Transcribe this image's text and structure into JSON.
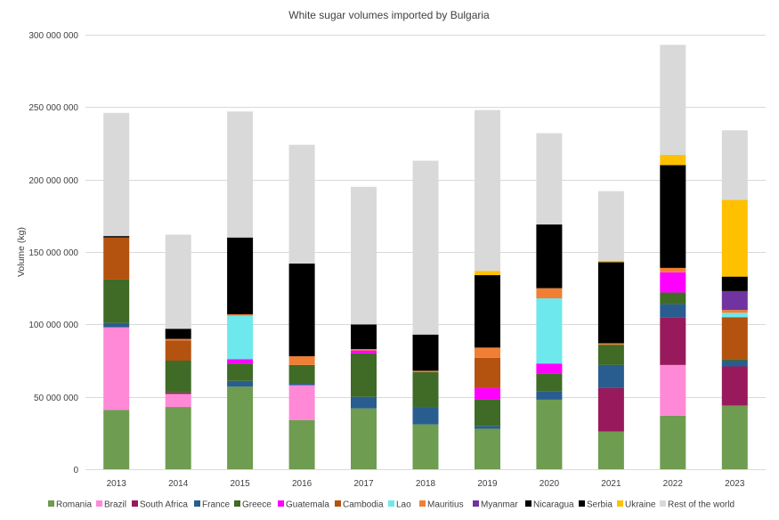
{
  "chart_data": {
    "type": "bar",
    "stacked": true,
    "title": "White sugar volumes imported by Bulgaria",
    "xlabel": "",
    "ylabel": "Volume (kg)",
    "ylim": [
      0,
      300000000
    ],
    "yticks": [
      0,
      50000000,
      100000000,
      150000000,
      200000000,
      250000000,
      300000000
    ],
    "ytick_labels": [
      "0",
      "50 000 000",
      "100 000 000",
      "150 000 000",
      "200 000 000",
      "250 000 000",
      "300 000 000"
    ],
    "grid": true,
    "legend_position": "bottom",
    "categories": [
      "2013",
      "2014",
      "2015",
      "2016",
      "2017",
      "2018",
      "2019",
      "2020",
      "2021",
      "2022",
      "2023"
    ],
    "series": [
      {
        "name": "Romania",
        "color": "#6e9c50",
        "values": [
          41000000,
          43000000,
          57000000,
          34000000,
          42000000,
          31000000,
          28000000,
          48000000,
          26000000,
          37000000,
          44000000
        ]
      },
      {
        "name": "Brazil",
        "color": "#ff89d6",
        "values": [
          57000000,
          9000000,
          0,
          24000000,
          0,
          0,
          0,
          0,
          0,
          35000000,
          0
        ]
      },
      {
        "name": "South Africa",
        "color": "#991a5c",
        "values": [
          0,
          1000000,
          0,
          0,
          0,
          0,
          0,
          0,
          30000000,
          33000000,
          27000000
        ]
      },
      {
        "name": "France",
        "color": "#2a5d8f",
        "values": [
          3000000,
          0,
          4000000,
          1000000,
          8000000,
          12000000,
          2000000,
          6000000,
          16000000,
          9000000,
          4000000
        ]
      },
      {
        "name": "Greece",
        "color": "#3f6b27",
        "values": [
          30000000,
          22000000,
          12000000,
          13000000,
          30000000,
          24000000,
          18000000,
          12000000,
          14000000,
          8000000,
          1000000
        ]
      },
      {
        "name": "Guatemala",
        "color": "#ff00ff",
        "values": [
          0,
          0,
          3000000,
          0,
          2000000,
          0,
          8000000,
          7000000,
          0,
          14000000,
          0
        ]
      },
      {
        "name": "Cambodia",
        "color": "#b4520f",
        "values": [
          29000000,
          14000000,
          0,
          0,
          0,
          0,
          21000000,
          0,
          0,
          0,
          29000000
        ]
      },
      {
        "name": "Lao",
        "color": "#6de8ec",
        "values": [
          0,
          0,
          30000000,
          0,
          0,
          0,
          0,
          45000000,
          0,
          0,
          3000000
        ]
      },
      {
        "name": "Mauritius",
        "color": "#f07f34",
        "values": [
          0,
          1000000,
          1000000,
          6000000,
          1000000,
          1000000,
          7000000,
          7000000,
          1000000,
          3000000,
          2000000
        ]
      },
      {
        "name": "Myanmar",
        "color": "#7133a0",
        "values": [
          0,
          0,
          0,
          0,
          0,
          0,
          0,
          0,
          0,
          0,
          13000000
        ]
      },
      {
        "name": "Nicaragua",
        "color": "#000000",
        "values": [
          1000000,
          7000000,
          53000000,
          64000000,
          17000000,
          25000000,
          50000000,
          44000000,
          56000000,
          71000000,
          10000000
        ]
      },
      {
        "name": "Serbia",
        "color": "#000000",
        "values": [
          0,
          0,
          0,
          0,
          0,
          0,
          0,
          0,
          0,
          0,
          0
        ]
      },
      {
        "name": "Ukraine",
        "color": "#ffc000",
        "values": [
          0,
          0,
          0,
          0,
          0,
          0,
          3000000,
          0,
          1000000,
          7000000,
          53000000
        ]
      },
      {
        "name": "Rest of the world",
        "color": "#d9d9d9",
        "values": [
          85000000,
          65000000,
          87000000,
          82000000,
          95000000,
          120000000,
          111000000,
          63000000,
          48000000,
          76000000,
          48000000
        ]
      }
    ]
  }
}
